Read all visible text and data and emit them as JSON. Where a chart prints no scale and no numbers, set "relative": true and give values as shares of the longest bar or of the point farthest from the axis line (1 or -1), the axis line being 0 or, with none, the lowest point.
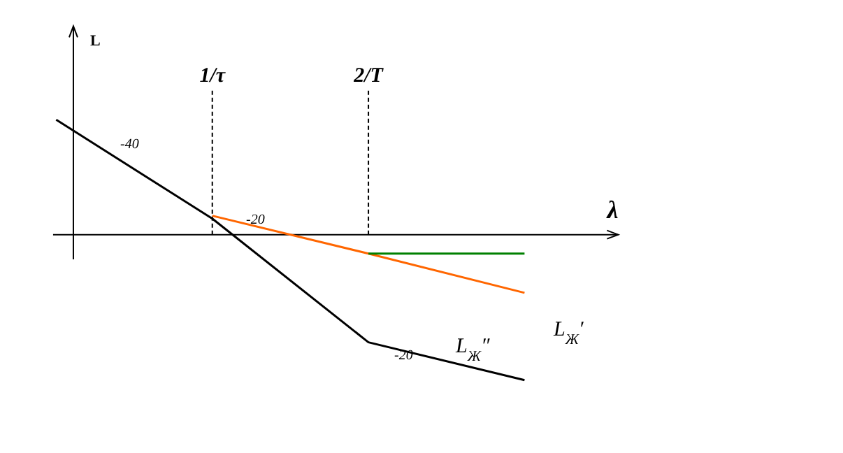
{
  "chart_data": {
    "type": "line",
    "relative": true,
    "xlabel": "λ",
    "ylabel": "L",
    "categories": [
      null,
      "1/τ",
      "2/T",
      null
    ],
    "marker": "none",
    "line_style": "solid",
    "series": [
      {
        "color": "#000000",
        "values": [
          0.79,
          0.11,
          -0.74,
          -1
        ]
      },
      {
        "color": "#ff6600",
        "values": [
          null,
          0.13,
          -0.13,
          -0.4
        ]
      },
      {
        "color": "#008000",
        "values": [
          null,
          null,
          -0.13,
          -0.13
        ]
      }
    ],
    "annotations": [
      "-40",
      "-20",
      "-20",
      "L$_{Ж}$′",
      "L$_{Ж}$″"
    ]
  }
}
